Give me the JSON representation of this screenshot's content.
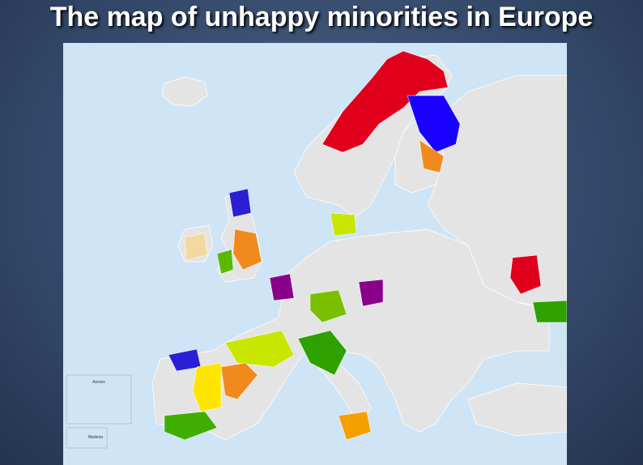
{
  "title": "The map of unhappy minorities in Europe",
  "map": {
    "labels": [
      "Azores",
      "Madeira"
    ]
  }
}
